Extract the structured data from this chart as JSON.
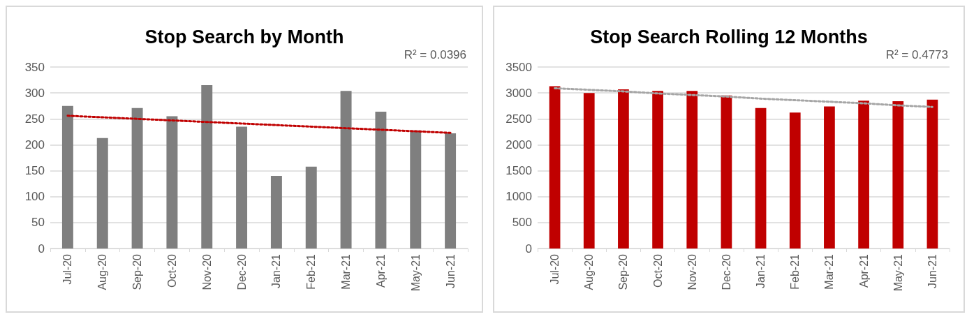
{
  "chart_data": [
    {
      "type": "bar",
      "title": "Stop Search by Month",
      "categories": [
        "Jul-20",
        "Aug-20",
        "Sep-20",
        "Oct-20",
        "Nov-20",
        "Dec-20",
        "Jan-21",
        "Feb-21",
        "Mar-21",
        "Apr-21",
        "May-21",
        "Jun-21"
      ],
      "series": [
        {
          "color": "#7f7f7f",
          "values": [
            275,
            213,
            271,
            255,
            315,
            235,
            140,
            158,
            304,
            264,
            228,
            222
          ]
        },
        {
          "type": "line",
          "color": "#c00000",
          "line_style": "dotted",
          "marker": "none",
          "values": [
            256,
            253,
            250,
            247,
            244,
            241,
            238,
            235,
            232,
            229,
            226,
            223
          ]
        }
      ],
      "ylim": [
        0,
        350
      ],
      "yticks": [
        0,
        50,
        100,
        150,
        200,
        250,
        300,
        350
      ],
      "grid": "y",
      "annotations": [
        "R² = 0.0396"
      ]
    },
    {
      "type": "bar",
      "title": "Stop Search Rolling 12 Months",
      "categories": [
        "Jul-20",
        "Aug-20",
        "Sep-20",
        "Oct-20",
        "Nov-20",
        "Dec-20",
        "Jan-21",
        "Feb-21",
        "Mar-21",
        "Apr-21",
        "May-21",
        "Jun-21"
      ],
      "series": [
        {
          "color": "#c00000",
          "values": [
            3130,
            3000,
            3070,
            3040,
            3040,
            2950,
            2710,
            2620,
            2740,
            2850,
            2840,
            2870
          ]
        },
        {
          "type": "line",
          "color": "#a6a6a6",
          "line_style": "dotted",
          "marker": "none",
          "values": [
            3090,
            3060,
            3030,
            2990,
            2960,
            2930,
            2890,
            2860,
            2830,
            2800,
            2760,
            2730
          ]
        }
      ],
      "ylim": [
        0,
        3500
      ],
      "yticks": [
        0,
        500,
        1000,
        1500,
        2000,
        2500,
        3000,
        3500
      ],
      "grid": "y",
      "annotations": [
        "R² = 0.4773"
      ]
    }
  ]
}
